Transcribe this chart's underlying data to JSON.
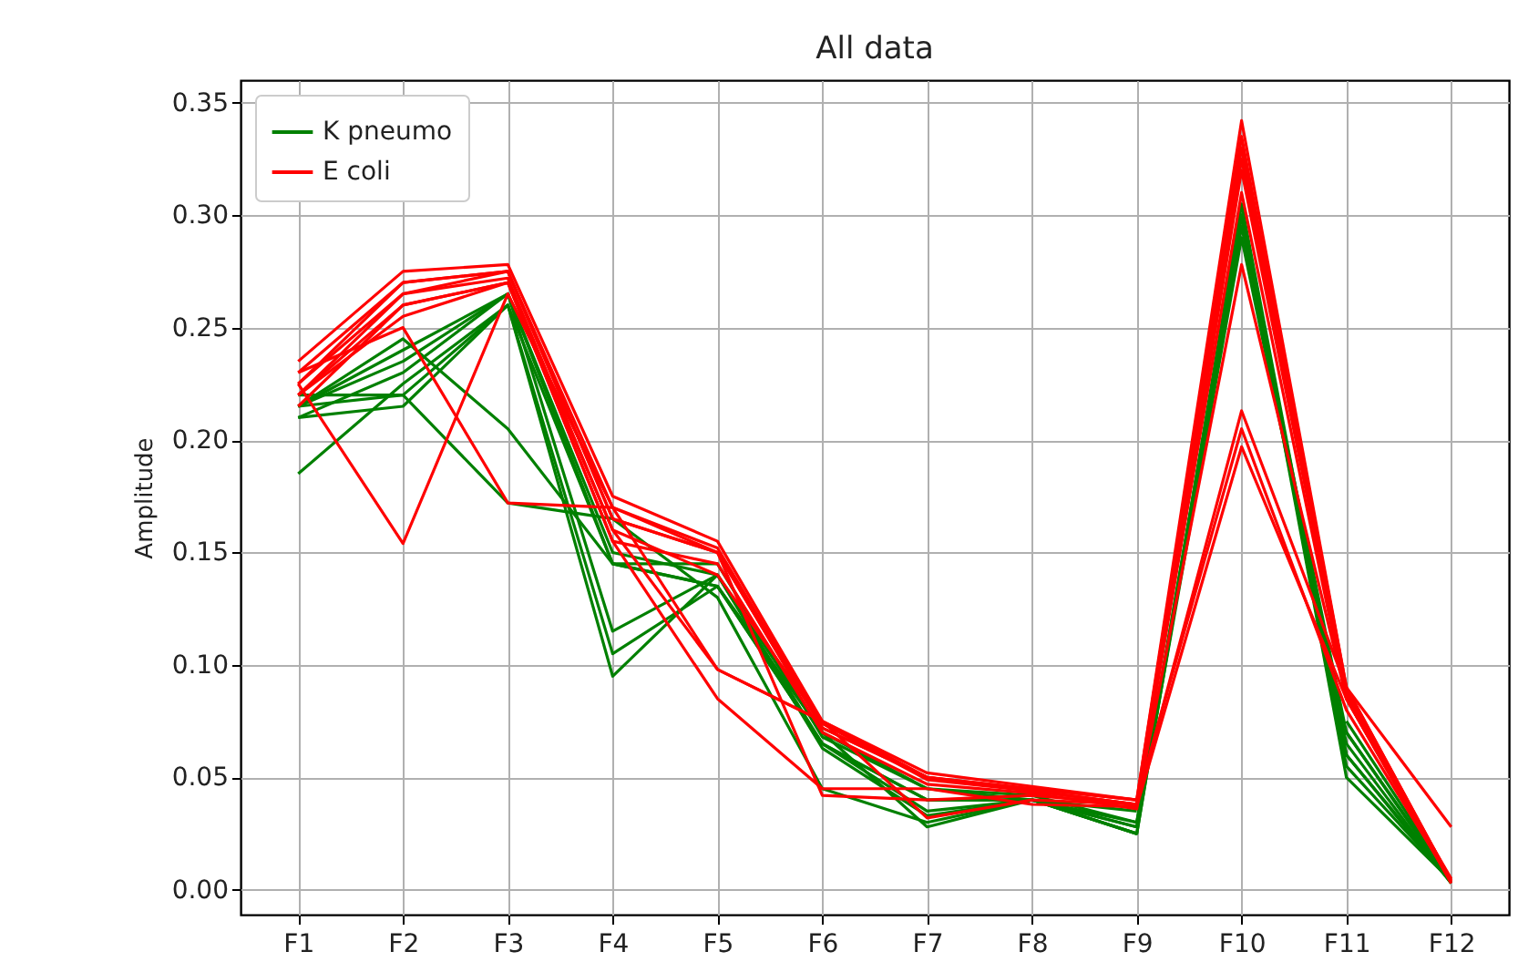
{
  "chart_data": {
    "type": "line",
    "title": "All data",
    "ylabel": "Amplitude",
    "categories": [
      "F1",
      "F2",
      "F3",
      "F4",
      "F5",
      "F6",
      "F7",
      "F8",
      "F9",
      "F10",
      "F11",
      "F12"
    ],
    "ylim": [
      -0.011,
      0.36
    ],
    "yticks": [
      {
        "value": 0,
        "label": "0.00"
      },
      {
        "value": 0.05,
        "label": "0.05"
      },
      {
        "value": 0.1,
        "label": "0.10"
      },
      {
        "value": 0.15,
        "label": "0.15"
      },
      {
        "value": 0.2,
        "label": "0.20"
      },
      {
        "value": 0.25,
        "label": "0.25"
      },
      {
        "value": 0.3,
        "label": "0.30"
      },
      {
        "value": 0.35,
        "label": "0.35"
      }
    ],
    "grid": true,
    "legend": "top left",
    "marker": "none",
    "line_style": "solid",
    "series": [
      {
        "name": "K pneumo",
        "color": "#008000",
        "values": [
          0.215,
          0.235,
          0.265,
          0.15,
          0.14,
          0.065,
          0.04,
          0.04,
          0.025,
          0.305,
          0.06,
          0.003
        ]
      },
      {
        "color": "#008000",
        "values": [
          0.185,
          0.225,
          0.26,
          0.145,
          0.135,
          0.07,
          0.045,
          0.042,
          0.03,
          0.3,
          0.055,
          0.004
        ]
      },
      {
        "color": "#008000",
        "values": [
          0.21,
          0.215,
          0.26,
          0.095,
          0.14,
          0.07,
          0.028,
          0.04,
          0.025,
          0.3,
          0.05,
          0.004
        ]
      },
      {
        "color": "#008000",
        "values": [
          0.22,
          0.22,
          0.26,
          0.105,
          0.135,
          0.065,
          0.035,
          0.04,
          0.028,
          0.295,
          0.07,
          0.004
        ]
      },
      {
        "color": "#008000",
        "values": [
          0.215,
          0.24,
          0.265,
          0.115,
          0.14,
          0.063,
          0.033,
          0.04,
          0.025,
          null,
          0.07,
          0.003
        ]
      },
      {
        "color": "#008000",
        "values": [
          0.215,
          0.245,
          0.205,
          0.145,
          0.135,
          0.065,
          0.04,
          0.04,
          0.03,
          0.3,
          0.06,
          0.004
        ]
      },
      {
        "color": "#008000",
        "values": [
          0.215,
          0.22,
          0.172,
          0.165,
          0.13,
          0.045,
          0.03,
          0.04,
          0.028,
          0.29,
          0.065,
          0.003
        ]
      },
      {
        "color": "#008000",
        "values": [
          0.21,
          0.23,
          0.265,
          0.145,
          0.145,
          0.068,
          0.045,
          0.04,
          0.035,
          null,
          0.075,
          0.004
        ]
      },
      {
        "name": "E coli",
        "color": "#ff0000",
        "values": [
          0.235,
          0.275,
          0.278,
          0.175,
          0.155,
          0.075,
          0.052,
          0.046,
          0.04,
          0.342,
          0.09,
          0.004
        ]
      },
      {
        "color": "#ff0000",
        "values": [
          0.225,
          0.27,
          0.275,
          0.165,
          0.15,
          0.072,
          0.05,
          0.044,
          0.038,
          0.33,
          0.085,
          0.003
        ]
      },
      {
        "color": "#ff0000",
        "values": [
          0.215,
          0.26,
          0.27,
          0.155,
          0.145,
          0.07,
          0.047,
          0.043,
          0.036,
          0.32,
          0.088,
          0.003
        ]
      },
      {
        "color": "#ff0000",
        "values": [
          0.22,
          0.265,
          0.272,
          0.16,
          0.14,
          0.074,
          0.049,
          0.044,
          0.038,
          0.31,
          0.085,
          0.004
        ]
      },
      {
        "color": "#ff0000",
        "values": [
          0.225,
          0.154,
          0.265,
          0.17,
          0.15,
          0.072,
          0.05,
          0.044,
          0.038,
          0.325,
          0.087,
          0.004
        ]
      },
      {
        "color": "#ff0000",
        "values": [
          0.23,
          0.25,
          0.172,
          0.17,
          0.098,
          0.075,
          0.05,
          0.045,
          0.04,
          0.335,
          0.09,
          0.004
        ]
      },
      {
        "color": "#ff0000",
        "values": [
          0.22,
          0.26,
          0.27,
          0.16,
          0.098,
          0.075,
          0.032,
          0.04,
          0.038,
          0.213,
          0.09,
          0.028
        ]
      },
      {
        "color": "#ff0000",
        "values": [
          0.22,
          0.255,
          0.27,
          0.155,
          0.085,
          0.045,
          0.045,
          0.038,
          0.037,
          0.197,
          0.085,
          0.005
        ]
      },
      {
        "color": "#ff0000",
        "values": [
          0.225,
          0.265,
          0.275,
          0.165,
          0.15,
          0.042,
          0.04,
          0.042,
          0.038,
          0.278,
          0.085,
          0.004
        ]
      },
      {
        "color": "#ff0000",
        "values": [
          0.23,
          0.27,
          0.275,
          0.17,
          0.152,
          0.074,
          0.05,
          0.045,
          0.04,
          0.205,
          0.08,
          0.004
        ]
      }
    ]
  }
}
